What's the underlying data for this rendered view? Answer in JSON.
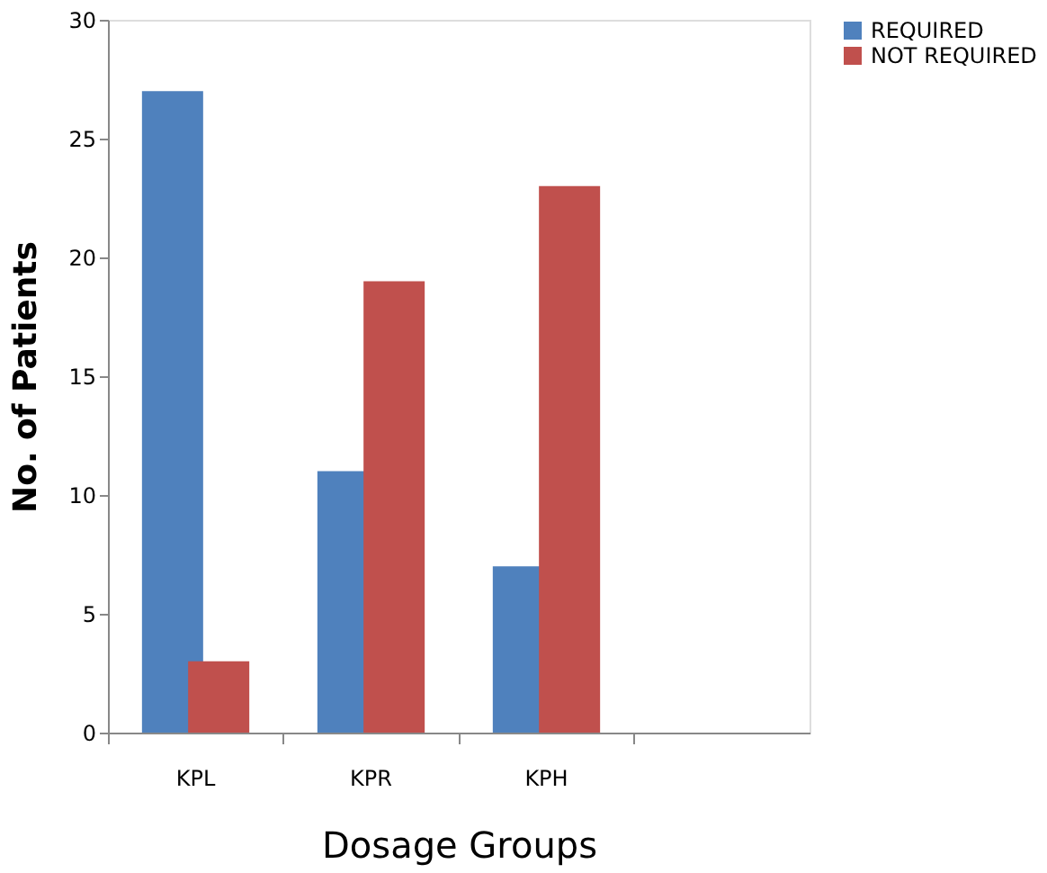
{
  "chart_data": {
    "type": "bar",
    "xlabel": "Dosage Groups",
    "ylabel": "No. of Patients",
    "categories": [
      "KPL",
      "KPR",
      "KPH",
      null
    ],
    "series": [
      {
        "name": "REQUIRED",
        "color": "#4f81bd",
        "values": [
          27,
          11,
          7,
          null
        ]
      },
      {
        "name": "NOT REQUIRED",
        "color": "#c0504d",
        "values": [
          3,
          19,
          23,
          null
        ]
      }
    ],
    "ylim": [
      0,
      30
    ],
    "yticks": [
      0,
      5,
      10,
      15,
      20,
      25,
      30
    ],
    "grid": false,
    "legend": "right"
  }
}
